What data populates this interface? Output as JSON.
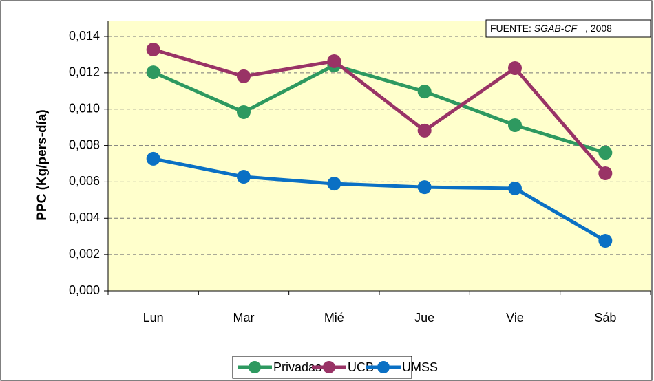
{
  "chart_data": {
    "type": "line",
    "y_label": "PPC (Kg/pers-día)",
    "source": {
      "prefix": "FUENTE:",
      "name": "SGAB-CF",
      "suffix": ", 2008"
    },
    "categories": [
      "Lun",
      "Mar",
      "Mié",
      "Jue",
      "Vie",
      "Sáb"
    ],
    "series": [
      {
        "name": "Privadas",
        "color": "#2e9960",
        "values": [
          0.01203,
          0.00984,
          0.01241,
          0.01097,
          0.00912,
          0.0076
        ]
      },
      {
        "name": "UCB",
        "color": "#993366",
        "values": [
          0.01328,
          0.01181,
          0.01264,
          0.00882,
          0.01226,
          0.00647
        ]
      },
      {
        "name": "UMSS",
        "color": "#0a70c4",
        "values": [
          0.00727,
          0.00628,
          0.0059,
          0.00571,
          0.00564,
          0.00276
        ]
      }
    ],
    "ylim": [
      0,
      0.014
    ],
    "yticks": [
      {
        "value": 0,
        "label": "0,000"
      },
      {
        "value": 0.002,
        "label": "0,002"
      },
      {
        "value": 0.004,
        "label": "0,004"
      },
      {
        "value": 0.006,
        "label": "0,006"
      },
      {
        "value": 0.008,
        "label": "0,008"
      },
      {
        "value": 0.01,
        "label": "0,010"
      },
      {
        "value": 0.012,
        "label": "0,012"
      },
      {
        "value": 0.014,
        "label": "0,014"
      }
    ],
    "grid": true,
    "legend": "bottom"
  }
}
